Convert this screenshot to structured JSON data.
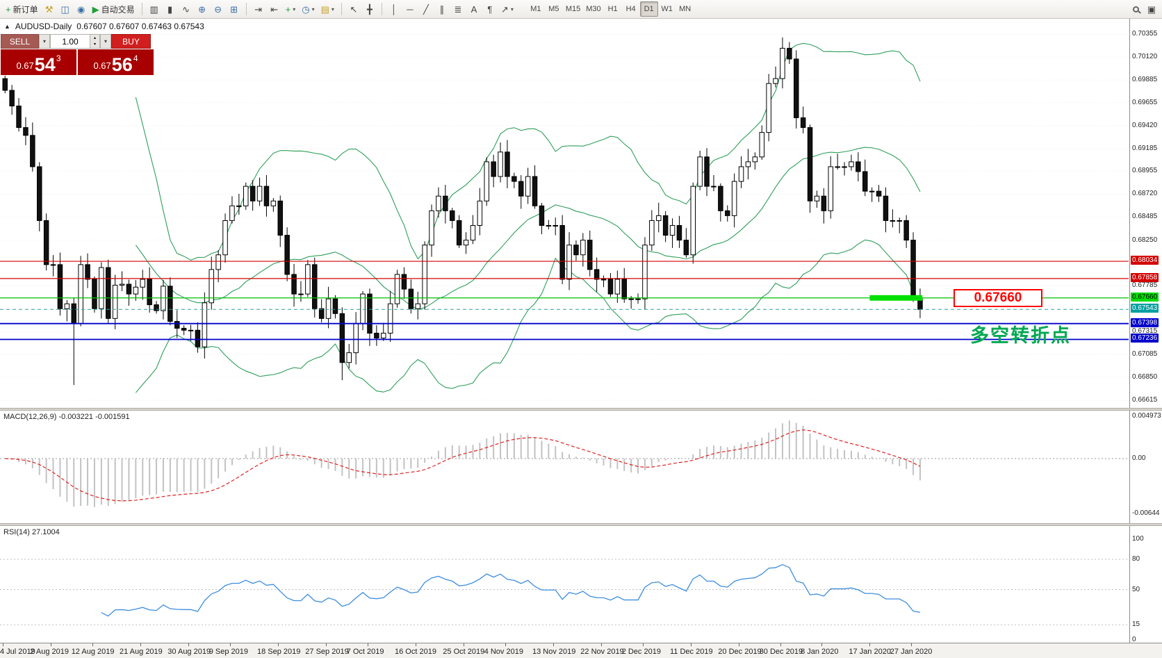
{
  "toolbar": {
    "new_order_label": "新订单",
    "auto_trading_label": "自动交易",
    "timeframes": [
      "M1",
      "M5",
      "M15",
      "M30",
      "H1",
      "H4",
      "D1",
      "W1",
      "MN"
    ],
    "active_timeframe": "D1"
  },
  "icons": {
    "plus": "+",
    "symbol_arrow": "▲",
    "caret": "▾",
    "play": "▶",
    "hammer": "⚒",
    "profile": "◫",
    "watch": "◉",
    "bars": "▥",
    "candles": "▮",
    "line_chart": "∿",
    "zoom_in": "⊕",
    "zoom_out": "⊖",
    "tile": "⊞",
    "auto_scroll": "⇥",
    "shift": "⇤",
    "indicators": "+",
    "clock": "◷",
    "template": "▤",
    "cursor": "↖",
    "crosshair": "╋",
    "vline": "│",
    "hline": "─",
    "trendline": "╱",
    "channel": "∥",
    "fibonacci": "≣",
    "text": "A",
    "text_label": "¶",
    "arrows": "↗",
    "panels": "▣",
    "spin_up": "▴",
    "spin_down": "▾"
  },
  "chart": {
    "symbol": "AUDUSD-Daily",
    "ohlc_text": "0.67607 0.67607 0.67463 0.67543"
  },
  "trade_panel": {
    "sell_label": "SELL",
    "buy_label": "BUY",
    "volume": "1.00",
    "sell_price_prefix": "0.67",
    "sell_price_main": "54",
    "sell_price_sup": "3",
    "buy_price_prefix": "0.67",
    "buy_price_main": "56",
    "buy_price_sup": "4"
  },
  "annotations": {
    "price_box": "0.67660",
    "turning_point": "多空转折点"
  },
  "macd": {
    "label": "MACD(12,26,9) -0.003221 -0.001591"
  },
  "rsi": {
    "label": "RSI(14) 27.1004"
  },
  "axis": {
    "main_ticks": [
      "0.70355",
      "0.70120",
      "0.69885",
      "0.69655",
      "0.69420",
      "0.69185",
      "0.68955",
      "0.68720",
      "0.68485",
      "0.68250",
      "0.67785",
      "0.67315",
      "0.67085",
      "0.66850",
      "0.66615"
    ],
    "macd_ticks": [
      "0.004973",
      "0.00",
      "-0.00644"
    ],
    "rsi_ticks": [
      "100",
      "80",
      "50",
      "15",
      "0"
    ],
    "rsi_levels": [
      80,
      50,
      15
    ]
  },
  "levels": [
    {
      "value": 0.68034,
      "label": "0.68034",
      "line": "#D40000",
      "badge_bg": "#D40000",
      "badge_fg": "#FFFFFF",
      "width": 1.2,
      "dash": false
    },
    {
      "value": 0.67858,
      "label": "0.67858",
      "line": "#D40000",
      "badge_bg": "#D40000",
      "badge_fg": "#FFFFFF",
      "width": 1.2,
      "dash": false
    },
    {
      "value": 0.6766,
      "label": "0.67660",
      "line": "#00C000",
      "badge_bg": "#00DD00",
      "badge_fg": "#000000",
      "width": 1.3,
      "dash": false
    },
    {
      "value": 0.67543,
      "label": "0.67543",
      "line": "#2AA198",
      "badge_bg": "#00A0A0",
      "badge_fg": "#FFFFFF",
      "width": 1.0,
      "dash": true
    },
    {
      "value": 0.67398,
      "label": "0.67398",
      "line": "#0000CC",
      "badge_bg": "#0000CC",
      "badge_fg": "#FFFFFF",
      "width": 1.8,
      "dash": false
    },
    {
      "value": 0.67236,
      "label": "0.67236",
      "line": "#0000CC",
      "badge_bg": "#0000CC",
      "badge_fg": "#FFFFFF",
      "width": 1.8,
      "dash": false
    }
  ],
  "dates": [
    {
      "label": "4 Jul 2019",
      "index": 0
    },
    {
      "label": "2 Aug 2019",
      "index": 7
    },
    {
      "label": "12 Aug 2019",
      "index": 13
    },
    {
      "label": "21 Aug 2019",
      "index": 20
    },
    {
      "label": "30 Aug 2019",
      "index": 27
    },
    {
      "label": "9 Sep 2019",
      "index": 33
    },
    {
      "label": "18 Sep 2019",
      "index": 40
    },
    {
      "label": "27 Sep 2019",
      "index": 47
    },
    {
      "label": "7 Oct 2019",
      "index": 53
    },
    {
      "label": "16 Oct 2019",
      "index": 60
    },
    {
      "label": "25 Oct 2019",
      "index": 67
    },
    {
      "label": "4 Nov 2019",
      "index": 73
    },
    {
      "label": "13 Nov 2019",
      "index": 80
    },
    {
      "label": "22 Nov 2019",
      "index": 87
    },
    {
      "label": "2 Dec 2019",
      "index": 93
    },
    {
      "label": "11 Dec 2019",
      "index": 100
    },
    {
      "label": "20 Dec 2019",
      "index": 107
    },
    {
      "label": "30 Dec 2019",
      "index": 113
    },
    {
      "label": "8 Jan 2020",
      "index": 119
    },
    {
      "label": "17 Jan 2020",
      "index": 126
    },
    {
      "label": "27 Jan 2020",
      "index": 132
    }
  ],
  "colors": {
    "bull": "#FFFFFF",
    "bear": "#111111",
    "candle_border": "#000000",
    "bollinger": "#2E9E5B",
    "macd_hist": "#C2C2C2",
    "macd_signal": "#E02020",
    "rsi": "#3C8DDE",
    "grid": "#EBEBEB"
  },
  "chart_data": {
    "type": "candlestick",
    "symbol": "AUDUSD",
    "timeframe": "Daily",
    "ohlc_current": {
      "open": 0.67607,
      "high": 0.67607,
      "low": 0.67463,
      "close": 0.67543
    },
    "ylim": [
      0.66615,
      0.70355
    ],
    "closes": [
      0.6978,
      0.6962,
      0.694,
      0.6932,
      0.69,
      0.6845,
      0.68,
      0.68,
      0.6755,
      0.676,
      0.674,
      0.68,
      0.6785,
      0.6755,
      0.6797,
      0.6745,
      0.6779,
      0.678,
      0.677,
      0.6777,
      0.6785,
      0.6759,
      0.6753,
      0.6778,
      0.6742,
      0.6735,
      0.6733,
      0.6733,
      0.6716,
      0.6761,
      0.6795,
      0.681,
      0.6845,
      0.686,
      0.686,
      0.688,
      0.6865,
      0.688,
      0.686,
      0.6865,
      0.683,
      0.679,
      0.677,
      0.677,
      0.68,
      0.6755,
      0.6745,
      0.6765,
      0.675,
      0.67,
      0.671,
      0.674,
      0.677,
      0.673,
      0.6725,
      0.673,
      0.676,
      0.679,
      0.6775,
      0.6755,
      0.676,
      0.682,
      0.6855,
      0.687,
      0.6855,
      0.6845,
      0.682,
      0.6825,
      0.684,
      0.6865,
      0.6905,
      0.689,
      0.6915,
      0.689,
      0.6885,
      0.687,
      0.689,
      0.686,
      0.684,
      0.684,
      0.684,
      0.6785,
      0.682,
      0.681,
      0.6825,
      0.6795,
      0.6785,
      0.6785,
      0.677,
      0.6785,
      0.6765,
      0.6765,
      0.6765,
      0.682,
      0.6845,
      0.685,
      0.683,
      0.684,
      0.6825,
      0.681,
      0.688,
      0.691,
      0.688,
      0.688,
      0.6855,
      0.685,
      0.6885,
      0.69,
      0.6905,
      0.691,
      0.6935,
      0.6985,
      0.699,
      0.7021,
      0.701,
      0.695,
      0.694,
      0.6865,
      0.687,
      0.6855,
      0.69,
      0.69,
      0.69,
      0.6905,
      0.6895,
      0.6875,
      0.6875,
      0.687,
      0.6845,
      0.6845,
      0.6845,
      0.6825,
      0.6765,
      0.67543
    ],
    "special_lows": {
      "10": 0.6677,
      "49": 0.6682
    },
    "special_highs": {
      "113": 0.7032
    },
    "marker": {
      "from_index": 126,
      "to_index": 133,
      "price": 0.6766,
      "color": "#00E000"
    },
    "indicators": {
      "bollinger": {
        "period": 20,
        "deviation": 2
      },
      "macd": {
        "fast": 12,
        "slow": 26,
        "signal": 9,
        "value": -0.003221,
        "signal_value": -0.001591
      },
      "rsi": {
        "period": 14,
        "value": 27.1004
      }
    }
  }
}
